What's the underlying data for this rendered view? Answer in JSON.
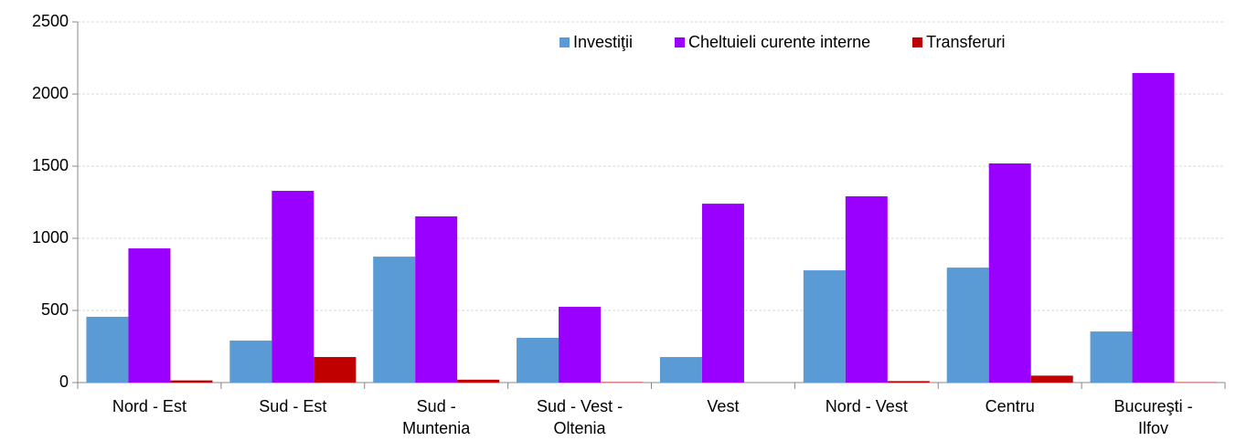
{
  "chart_data": {
    "type": "bar",
    "categories": [
      "Nord - Est",
      "Sud - Est",
      "Sud - Muntenia",
      "Sud - Vest - Oltenia",
      "Vest",
      "Nord - Vest",
      "Centru",
      "Bucureşti - Ilfov"
    ],
    "series": [
      {
        "name": "Investiţii",
        "color": "#5b9bd5",
        "values": [
          456,
          291,
          873,
          310,
          177,
          778,
          797,
          354
        ]
      },
      {
        "name": "Cheltuieli curente interne",
        "color": "#9a00ff",
        "values": [
          930,
          1329,
          1152,
          525,
          1240,
          1291,
          1519,
          2146
        ]
      },
      {
        "name": "Transferuri",
        "color": "#c00000",
        "values": [
          15,
          177,
          20,
          3,
          0,
          10,
          48,
          2
        ]
      }
    ],
    "ylim": [
      0,
      2500
    ],
    "yticks": [
      0,
      500,
      1000,
      1500,
      2000,
      2500
    ],
    "grid": true,
    "legend": "top-right"
  }
}
